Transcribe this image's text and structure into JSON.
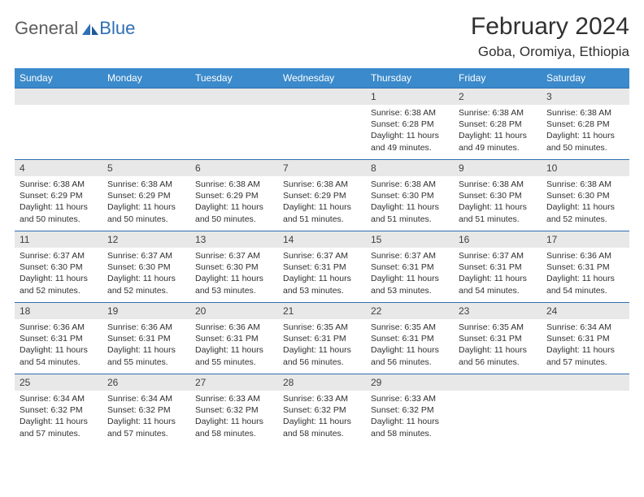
{
  "brand": {
    "text1": "General",
    "text2": "Blue"
  },
  "title": "February 2024",
  "location": "Goba, Oromiya, Ethiopia",
  "header_bg": "#3b8acb",
  "border_color": "#2f6fb5",
  "daynum_bg": "#e8e8e8",
  "weekdays": [
    "Sunday",
    "Monday",
    "Tuesday",
    "Wednesday",
    "Thursday",
    "Friday",
    "Saturday"
  ],
  "weeks": [
    [
      null,
      null,
      null,
      null,
      {
        "n": "1",
        "sunrise": "6:38 AM",
        "sunset": "6:28 PM",
        "daylight": "11 hours and 49 minutes."
      },
      {
        "n": "2",
        "sunrise": "6:38 AM",
        "sunset": "6:28 PM",
        "daylight": "11 hours and 49 minutes."
      },
      {
        "n": "3",
        "sunrise": "6:38 AM",
        "sunset": "6:28 PM",
        "daylight": "11 hours and 50 minutes."
      }
    ],
    [
      {
        "n": "4",
        "sunrise": "6:38 AM",
        "sunset": "6:29 PM",
        "daylight": "11 hours and 50 minutes."
      },
      {
        "n": "5",
        "sunrise": "6:38 AM",
        "sunset": "6:29 PM",
        "daylight": "11 hours and 50 minutes."
      },
      {
        "n": "6",
        "sunrise": "6:38 AM",
        "sunset": "6:29 PM",
        "daylight": "11 hours and 50 minutes."
      },
      {
        "n": "7",
        "sunrise": "6:38 AM",
        "sunset": "6:29 PM",
        "daylight": "11 hours and 51 minutes."
      },
      {
        "n": "8",
        "sunrise": "6:38 AM",
        "sunset": "6:30 PM",
        "daylight": "11 hours and 51 minutes."
      },
      {
        "n": "9",
        "sunrise": "6:38 AM",
        "sunset": "6:30 PM",
        "daylight": "11 hours and 51 minutes."
      },
      {
        "n": "10",
        "sunrise": "6:38 AM",
        "sunset": "6:30 PM",
        "daylight": "11 hours and 52 minutes."
      }
    ],
    [
      {
        "n": "11",
        "sunrise": "6:37 AM",
        "sunset": "6:30 PM",
        "daylight": "11 hours and 52 minutes."
      },
      {
        "n": "12",
        "sunrise": "6:37 AM",
        "sunset": "6:30 PM",
        "daylight": "11 hours and 52 minutes."
      },
      {
        "n": "13",
        "sunrise": "6:37 AM",
        "sunset": "6:30 PM",
        "daylight": "11 hours and 53 minutes."
      },
      {
        "n": "14",
        "sunrise": "6:37 AM",
        "sunset": "6:31 PM",
        "daylight": "11 hours and 53 minutes."
      },
      {
        "n": "15",
        "sunrise": "6:37 AM",
        "sunset": "6:31 PM",
        "daylight": "11 hours and 53 minutes."
      },
      {
        "n": "16",
        "sunrise": "6:37 AM",
        "sunset": "6:31 PM",
        "daylight": "11 hours and 54 minutes."
      },
      {
        "n": "17",
        "sunrise": "6:36 AM",
        "sunset": "6:31 PM",
        "daylight": "11 hours and 54 minutes."
      }
    ],
    [
      {
        "n": "18",
        "sunrise": "6:36 AM",
        "sunset": "6:31 PM",
        "daylight": "11 hours and 54 minutes."
      },
      {
        "n": "19",
        "sunrise": "6:36 AM",
        "sunset": "6:31 PM",
        "daylight": "11 hours and 55 minutes."
      },
      {
        "n": "20",
        "sunrise": "6:36 AM",
        "sunset": "6:31 PM",
        "daylight": "11 hours and 55 minutes."
      },
      {
        "n": "21",
        "sunrise": "6:35 AM",
        "sunset": "6:31 PM",
        "daylight": "11 hours and 56 minutes."
      },
      {
        "n": "22",
        "sunrise": "6:35 AM",
        "sunset": "6:31 PM",
        "daylight": "11 hours and 56 minutes."
      },
      {
        "n": "23",
        "sunrise": "6:35 AM",
        "sunset": "6:31 PM",
        "daylight": "11 hours and 56 minutes."
      },
      {
        "n": "24",
        "sunrise": "6:34 AM",
        "sunset": "6:31 PM",
        "daylight": "11 hours and 57 minutes."
      }
    ],
    [
      {
        "n": "25",
        "sunrise": "6:34 AM",
        "sunset": "6:32 PM",
        "daylight": "11 hours and 57 minutes."
      },
      {
        "n": "26",
        "sunrise": "6:34 AM",
        "sunset": "6:32 PM",
        "daylight": "11 hours and 57 minutes."
      },
      {
        "n": "27",
        "sunrise": "6:33 AM",
        "sunset": "6:32 PM",
        "daylight": "11 hours and 58 minutes."
      },
      {
        "n": "28",
        "sunrise": "6:33 AM",
        "sunset": "6:32 PM",
        "daylight": "11 hours and 58 minutes."
      },
      {
        "n": "29",
        "sunrise": "6:33 AM",
        "sunset": "6:32 PM",
        "daylight": "11 hours and 58 minutes."
      },
      null,
      null
    ]
  ],
  "labels": {
    "sunrise": "Sunrise:",
    "sunset": "Sunset:",
    "daylight": "Daylight:"
  }
}
